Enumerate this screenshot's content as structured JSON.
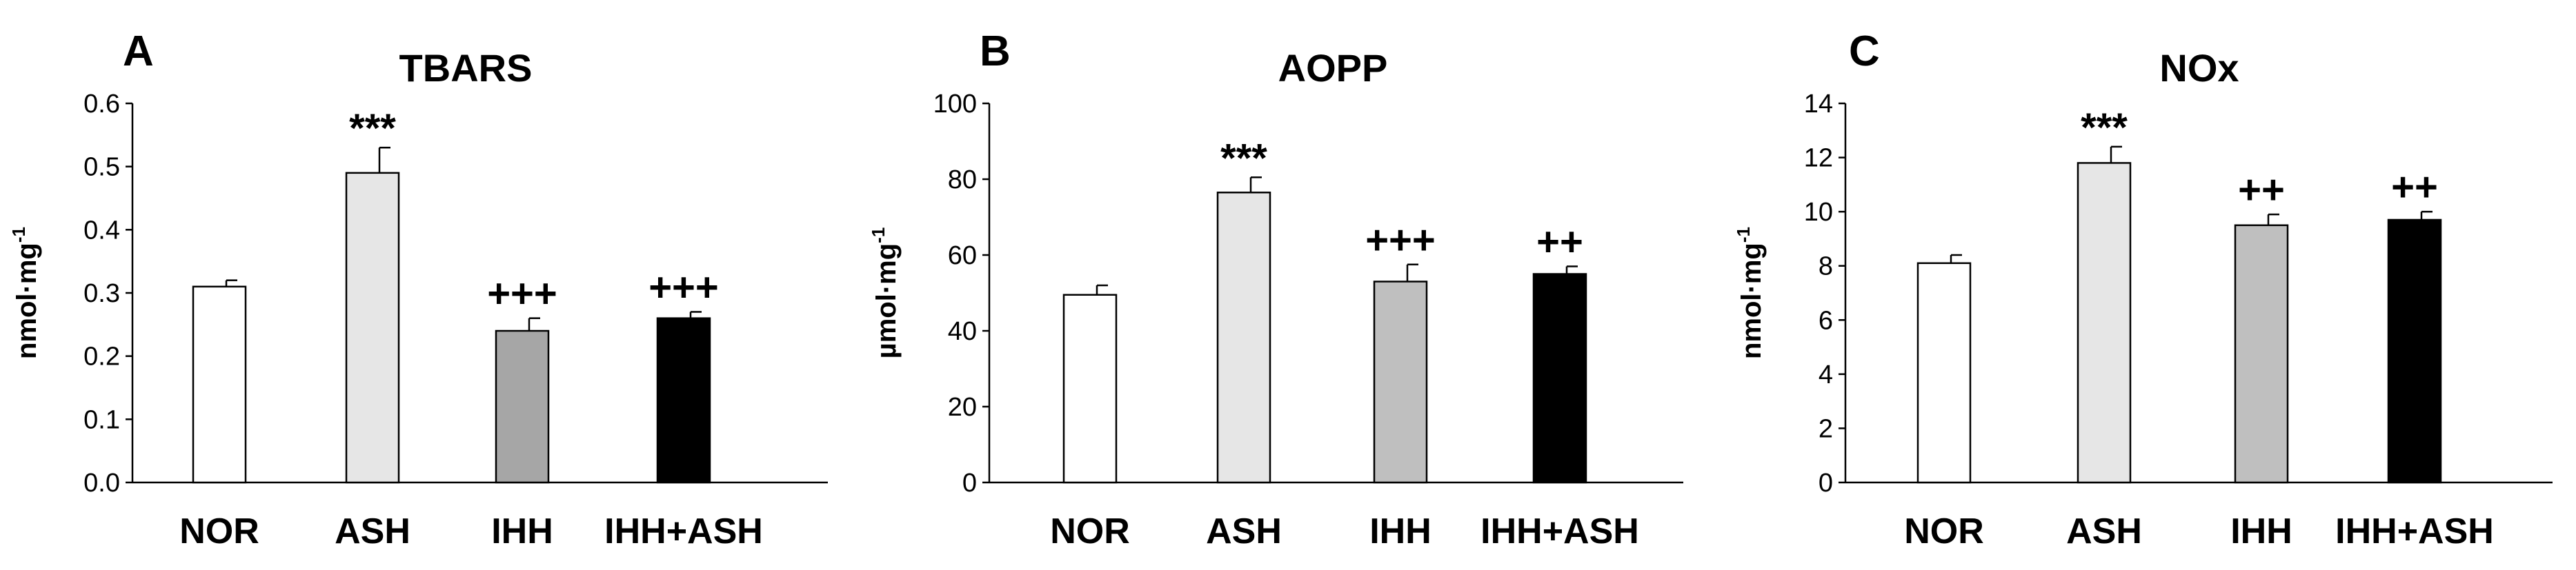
{
  "chart_data": [
    {
      "type": "bar",
      "panel": "A",
      "title": "TBARS",
      "ylabel": "nmol·mg",
      "ylabel_sup": "-1",
      "categories": [
        "NOR",
        "ASH",
        "IHH",
        "IHH+ASH"
      ],
      "values": [
        0.31,
        0.49,
        0.24,
        0.26
      ],
      "errors": [
        0.01,
        0.04,
        0.02,
        0.01
      ],
      "significance": [
        "",
        "***",
        "+++",
        "+++"
      ],
      "bar_colors": [
        "#ffffff",
        "#e6e6e6",
        "#a6a6a6",
        "#000000"
      ],
      "ylim": [
        0,
        0.6
      ],
      "yticks": [
        0,
        0.1,
        0.2,
        0.3,
        0.4,
        0.5,
        0.6
      ],
      "ytick_labels": [
        "0.0",
        "0.1",
        "0.2",
        "0.3",
        "0.4",
        "0.5",
        "0.6"
      ],
      "grid": false
    },
    {
      "type": "bar",
      "panel": "B",
      "title": "AOPP",
      "ylabel": "µmol·mg",
      "ylabel_sup": "-1",
      "categories": [
        "NOR",
        "ASH",
        "IHH",
        "IHH+ASH"
      ],
      "values": [
        49.5,
        76.5,
        53,
        55
      ],
      "errors": [
        2.5,
        4,
        4.5,
        2
      ],
      "significance": [
        "",
        "***",
        "+++",
        "++"
      ],
      "bar_colors": [
        "#ffffff",
        "#e6e6e6",
        "#bfbfbf",
        "#000000"
      ],
      "ylim": [
        0,
        100
      ],
      "yticks": [
        0,
        20,
        40,
        60,
        80,
        100
      ],
      "ytick_labels": [
        "0",
        "20",
        "40",
        "60",
        "80",
        "100"
      ],
      "grid": false
    },
    {
      "type": "bar",
      "panel": "C",
      "title": "NOx",
      "ylabel": "nmol·mg",
      "ylabel_sup": "-1",
      "categories": [
        "NOR",
        "ASH",
        "IHH",
        "IHH+ASH"
      ],
      "values": [
        8.1,
        11.8,
        9.5,
        9.7
      ],
      "errors": [
        0.3,
        0.6,
        0.4,
        0.3
      ],
      "significance": [
        "",
        "***",
        "++",
        "++"
      ],
      "bar_colors": [
        "#ffffff",
        "#e6e6e6",
        "#bfbfbf",
        "#000000"
      ],
      "ylim": [
        0,
        14
      ],
      "yticks": [
        0,
        2,
        4,
        6,
        8,
        10,
        12,
        14
      ],
      "ytick_labels": [
        "0",
        "2",
        "4",
        "6",
        "8",
        "10",
        "12",
        "14"
      ],
      "grid": false
    }
  ]
}
